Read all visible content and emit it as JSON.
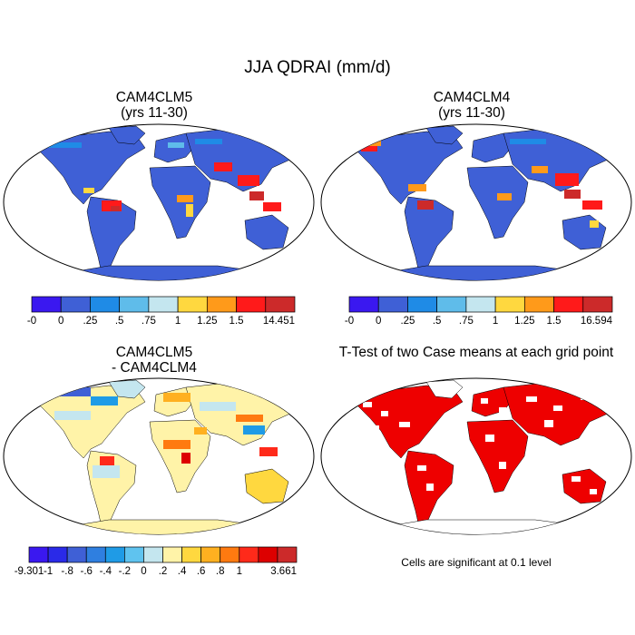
{
  "main_title": "JJA QDRAI (mm/d)",
  "panels": {
    "top_left": {
      "title_line1": "CAM4CLM5",
      "title_line2": "(yrs 11-30)"
    },
    "top_right": {
      "title_line1": "CAM4CLM4",
      "title_line2": "(yrs 11-30)"
    },
    "bottom_left": {
      "title_line1": "CAM4CLM5",
      "title_line2": "- CAM4CLM4"
    },
    "bottom_right": {
      "title_line1": "T-Test of two Case means at each grid point",
      "note": "Cells are significant at 0.1 level"
    }
  },
  "colorbars": {
    "top_left": {
      "colors": [
        "#3a18f0",
        "#3f60d6",
        "#1f8be6",
        "#5fbcea",
        "#c4e6ef",
        "#ffd83f",
        "#ff9a1a",
        "#ff1a1a",
        "#cc2a2a"
      ],
      "labels": [
        "-0",
        "0",
        ".25",
        ".5",
        ".75",
        "1",
        "1.25",
        "1.5",
        "14.451"
      ]
    },
    "top_right": {
      "colors": [
        "#3a18f0",
        "#3f60d6",
        "#1f8be6",
        "#5fbcea",
        "#c4e6ef",
        "#ffd83f",
        "#ff9a1a",
        "#ff1a1a",
        "#cc2a2a"
      ],
      "labels": [
        "-0",
        "0",
        ".25",
        ".5",
        ".75",
        "1",
        "1.25",
        "1.5",
        "16.594"
      ]
    },
    "bottom_left": {
      "colors": [
        "#3a18f0",
        "#2a2ae8",
        "#3f60d6",
        "#2f7fe0",
        "#1f9be6",
        "#5fc3ef",
        "#c4e6ef",
        "#fff3a8",
        "#ffd83f",
        "#ffb020",
        "#ff7a10",
        "#ff2a1a",
        "#dd0000",
        "#cc2a2a"
      ],
      "labels": [
        "-9.301",
        "-1",
        "-.8",
        "-.6",
        "-.4",
        "-.2",
        "0",
        ".2",
        ".4",
        ".6",
        ".8",
        "1",
        "3.661"
      ]
    }
  },
  "map_colors": {
    "ocean": "#ffffff",
    "land_top": "#3f60d6",
    "land_diff": "#fff3a8",
    "significant": "#ee0000"
  }
}
